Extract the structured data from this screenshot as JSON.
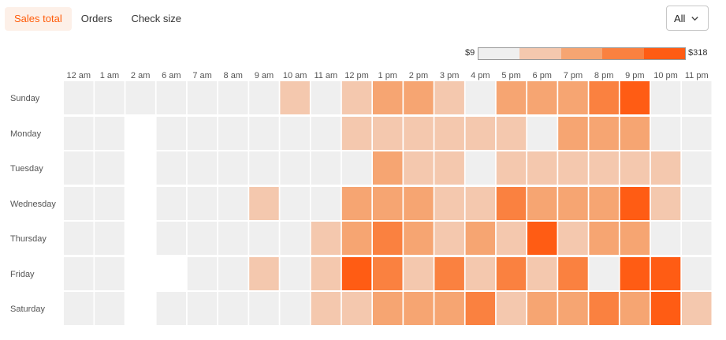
{
  "tabs": [
    {
      "label": "Sales total",
      "active": true
    },
    {
      "label": "Orders",
      "active": false
    },
    {
      "label": "Check size",
      "active": false
    }
  ],
  "filter": {
    "selected": "All",
    "icon": "chevron-down-icon"
  },
  "legend": {
    "min_label": "$9",
    "max_label": "$318",
    "colors": [
      "#efefef",
      "#f4c8ae",
      "#f6a572",
      "#fa8140",
      "#ff5c14"
    ]
  },
  "chart_data": {
    "type": "heatmap",
    "metric": "Sales total",
    "x_categories": [
      "12 am",
      "1 am",
      "2 am",
      "6 am",
      "7 am",
      "8 am",
      "9 am",
      "10 am",
      "11 am",
      "12 pm",
      "1 pm",
      "2 pm",
      "3 pm",
      "4 pm",
      "5 pm",
      "6 pm",
      "7 pm",
      "8 pm",
      "9 pm",
      "10 pm",
      "11 pm"
    ],
    "y_categories": [
      "Sunday",
      "Monday",
      "Tuesday",
      "Wednesday",
      "Thursday",
      "Friday",
      "Saturday"
    ],
    "value_range": [
      9,
      318
    ],
    "legend_colors": [
      "#efefef",
      "#f4c8ae",
      "#f6a572",
      "#fa8140",
      "#ff5c14"
    ],
    "level_note": "level 0-4 maps to legend color bins from $9 to $318; null = no data",
    "levels": [
      [
        0,
        0,
        0,
        0,
        0,
        0,
        0,
        1,
        0,
        1,
        2,
        2,
        1,
        0,
        2,
        2,
        2,
        3,
        4,
        0,
        0
      ],
      [
        0,
        0,
        null,
        0,
        0,
        0,
        0,
        0,
        0,
        1,
        1,
        1,
        1,
        1,
        1,
        0,
        2,
        2,
        2,
        0,
        0
      ],
      [
        0,
        0,
        null,
        0,
        0,
        0,
        0,
        0,
        0,
        0,
        2,
        1,
        1,
        0,
        1,
        1,
        1,
        1,
        1,
        1,
        0
      ],
      [
        0,
        0,
        null,
        0,
        0,
        0,
        1,
        0,
        0,
        2,
        2,
        2,
        1,
        1,
        3,
        2,
        2,
        2,
        4,
        1,
        0
      ],
      [
        0,
        0,
        null,
        0,
        0,
        0,
        0,
        0,
        1,
        2,
        3,
        2,
        1,
        2,
        1,
        4,
        1,
        2,
        2,
        0,
        0
      ],
      [
        0,
        0,
        null,
        null,
        0,
        0,
        1,
        0,
        1,
        4,
        3,
        1,
        3,
        1,
        3,
        1,
        3,
        0,
        4,
        4,
        0
      ],
      [
        0,
        0,
        null,
        0,
        0,
        0,
        0,
        0,
        1,
        1,
        2,
        2,
        2,
        3,
        1,
        2,
        2,
        3,
        2,
        4,
        1
      ]
    ]
  }
}
